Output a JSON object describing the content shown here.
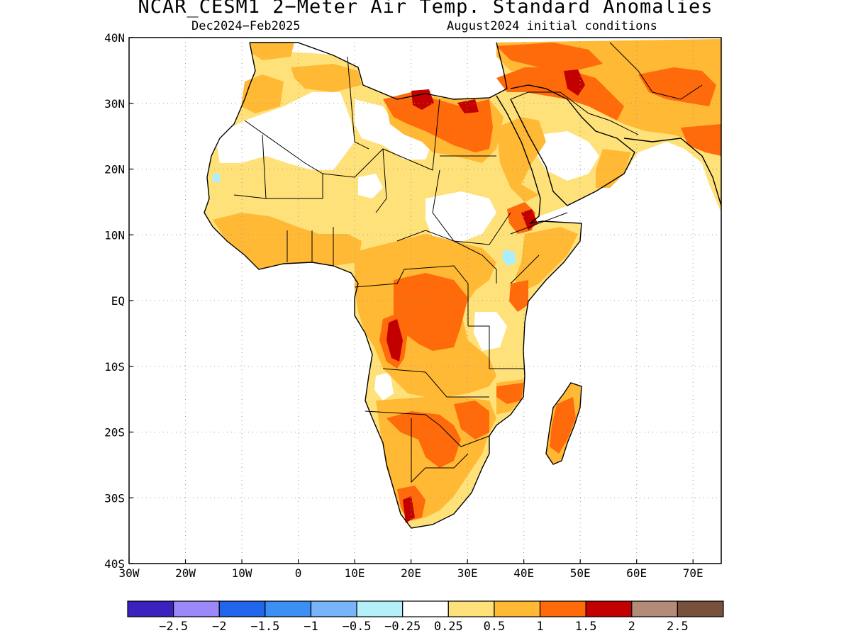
{
  "title": "NCAR_CESM1 2−Meter Air Temp. Standard Anomalies",
  "season": "Dec2024−Feb2025",
  "initial_conditions": "August2024 initial conditions",
  "map": {
    "lon_range": [
      -30,
      75
    ],
    "lat_range": [
      -40,
      40
    ],
    "x_ticks": [
      {
        "value": -30,
        "label": "30W"
      },
      {
        "value": -20,
        "label": "20W"
      },
      {
        "value": -10,
        "label": "10W"
      },
      {
        "value": 0,
        "label": "0"
      },
      {
        "value": 10,
        "label": "10E"
      },
      {
        "value": 20,
        "label": "20E"
      },
      {
        "value": 30,
        "label": "30E"
      },
      {
        "value": 40,
        "label": "40E"
      },
      {
        "value": 50,
        "label": "50E"
      },
      {
        "value": 60,
        "label": "60E"
      },
      {
        "value": 70,
        "label": "70E"
      }
    ],
    "y_ticks": [
      {
        "value": 40,
        "label": "40N"
      },
      {
        "value": 30,
        "label": "30N"
      },
      {
        "value": 20,
        "label": "20N"
      },
      {
        "value": 10,
        "label": "10N"
      },
      {
        "value": 0,
        "label": "EQ"
      },
      {
        "value": -10,
        "label": "10S"
      },
      {
        "value": -20,
        "label": "20S"
      },
      {
        "value": -30,
        "label": "30S"
      },
      {
        "value": -40,
        "label": "40S"
      }
    ],
    "grid": "dotted",
    "colors": {
      "white": "#ffffff",
      "lt_yellow": "#ffe17a",
      "yellow": "#ffb935",
      "orange": "#ff6a0a",
      "red": "#c30000",
      "lt_blue": "#aaeeff"
    }
  },
  "colorbar": {
    "colors": [
      "#3b22be",
      "#9b89fa",
      "#2065eb",
      "#3c90f5",
      "#78b4fa",
      "#b4f0fa",
      "#ffffff",
      "#ffe17a",
      "#ffb935",
      "#ff6a0a",
      "#c30000",
      "#b48a78",
      "#78503c"
    ],
    "labels": [
      "−2.5",
      "−2",
      "−1.5",
      "−1",
      "−0.5",
      "−0.25",
      "0.25",
      "0.5",
      "1",
      "1.5",
      "2",
      "2.5"
    ]
  }
}
